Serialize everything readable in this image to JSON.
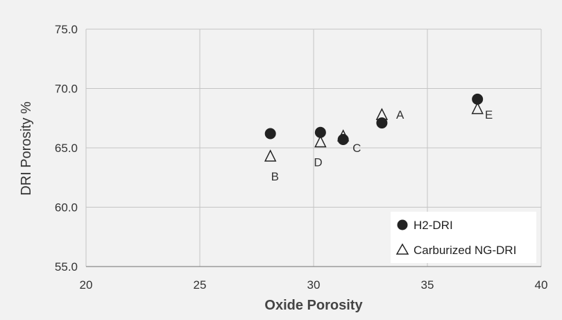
{
  "chart_data": {
    "type": "scatter",
    "xlabel": "Oxide Porosity",
    "ylabel": "DRI Porosity  %",
    "xlim": [
      20,
      40
    ],
    "ylim": [
      55,
      75
    ],
    "x_ticks": [
      "20",
      "25",
      "30",
      "35",
      "40"
    ],
    "y_ticks": [
      "55.0",
      "60.0",
      "65.0",
      "70.0",
      "75.0"
    ],
    "grid": true,
    "legend_position": "bottom-right",
    "series": [
      {
        "name": "H2-DRI",
        "marker": "circle",
        "color": "#222222",
        "points": [
          {
            "x": 28.1,
            "y": 66.2
          },
          {
            "x": 30.3,
            "y": 66.3
          },
          {
            "x": 31.3,
            "y": 65.7
          },
          {
            "x": 33.0,
            "y": 67.1
          },
          {
            "x": 37.2,
            "y": 69.1
          }
        ]
      },
      {
        "name": "Carburized NG-DRI",
        "marker": "triangle",
        "color": "#222222",
        "points": [
          {
            "x": 28.1,
            "y": 64.3
          },
          {
            "x": 30.3,
            "y": 65.5
          },
          {
            "x": 31.3,
            "y": 66.0
          },
          {
            "x": 33.0,
            "y": 67.8
          },
          {
            "x": 37.2,
            "y": 68.3
          }
        ]
      }
    ],
    "annotations": [
      {
        "text": "A",
        "x": 33.8,
        "y": 67.8
      },
      {
        "text": "B",
        "x": 28.3,
        "y": 62.6
      },
      {
        "text": "C",
        "x": 31.9,
        "y": 65.0
      },
      {
        "text": "D",
        "x": 30.2,
        "y": 63.8
      },
      {
        "text": "E",
        "x": 37.7,
        "y": 67.8
      }
    ]
  }
}
